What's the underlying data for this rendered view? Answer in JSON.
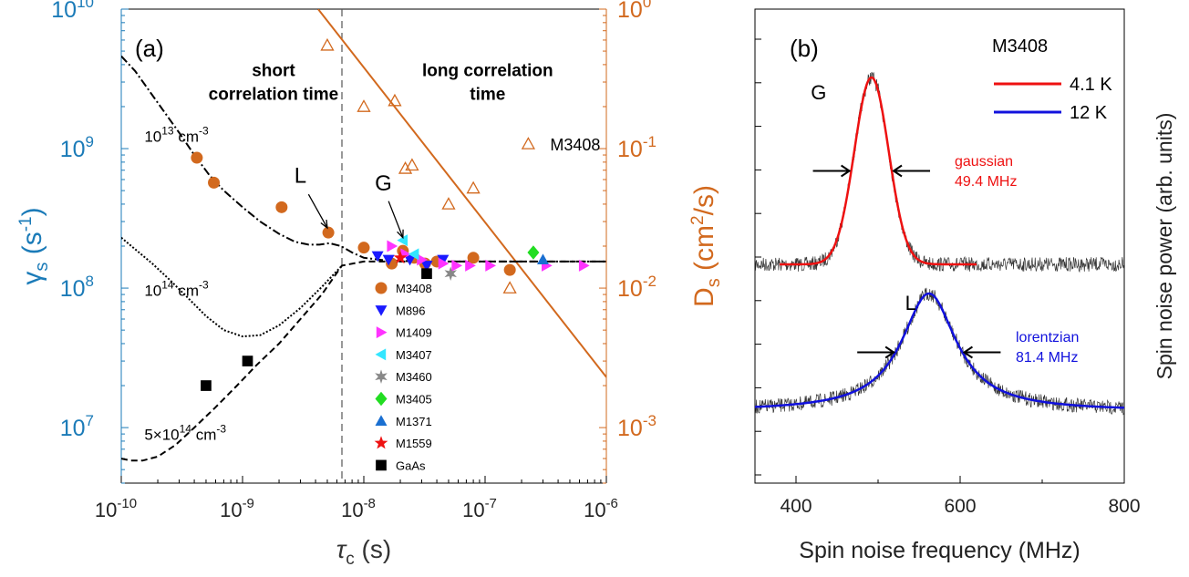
{
  "chart_data": [
    {
      "panel_label": "(a)",
      "type": "scatter",
      "x_scale": "log",
      "y_scale": "log",
      "xlabel": {
        "main": "τ",
        "sub": "c",
        "unit": " (s)"
      },
      "ylabel_left": {
        "main": "γ",
        "sub": "s",
        "unit": " (s",
        "sup": "-1",
        "close": ")"
      },
      "ylabel_right": {
        "main": "D",
        "sub": "s",
        "unit": " (cm",
        "sup": "2",
        "close": "/s)"
      },
      "xlim": [
        1e-10,
        1e-06
      ],
      "ylim_left": [
        4000000.0,
        10000000000.0
      ],
      "ylim_right": [
        0.0004,
        1
      ],
      "x_ticks": [
        {
          "v": 1e-10,
          "m": "10",
          "e": "-10"
        },
        {
          "v": 1e-09,
          "m": "10",
          "e": "-9"
        },
        {
          "v": 1e-08,
          "m": "10",
          "e": "-8"
        },
        {
          "v": 1e-07,
          "m": "10",
          "e": "-7"
        },
        {
          "v": 1e-06,
          "m": "10",
          "e": "-6"
        }
      ],
      "y_ticks_left": [
        {
          "v": 10000000.0,
          "m": "10",
          "e": "7"
        },
        {
          "v": 100000000.0,
          "m": "10",
          "e": "8"
        },
        {
          "v": 1000000000.0,
          "m": "10",
          "e": "9"
        },
        {
          "v": 10000000000.0,
          "m": "10",
          "e": "10"
        }
      ],
      "y_ticks_right": [
        {
          "v": 0.001,
          "m": "10",
          "e": "-3"
        },
        {
          "v": 0.01,
          "m": "10",
          "e": "-2"
        },
        {
          "v": 0.1,
          "m": "10",
          "e": "-1"
        },
        {
          "v": 1,
          "m": "10",
          "e": "0"
        }
      ],
      "colors": {
        "left_axis": "#1b7bb8",
        "right_axis": "#d2691e"
      },
      "region_labels": [
        {
          "lines": [
            "short",
            "correlation time"
          ],
          "x": 1.8e-09,
          "y": 3300000000.0
        },
        {
          "lines": [
            "long correlation",
            "time"
          ],
          "x": 1.05e-07,
          "y": 3300000000.0
        }
      ],
      "divider_x": 6.6e-09,
      "concentration_labels": [
        {
          "pre": "10",
          "sup": "13",
          "post": " cm",
          "sup2": "-3",
          "x": 1.55e-10,
          "y": 1120000000.0
        },
        {
          "pre": "10",
          "sup": "14",
          "post": " cm",
          "sup2": "-3",
          "x": 1.55e-10,
          "y": 88000000.0
        },
        {
          "pre": "5×10",
          "sup": "14",
          "post": " cm",
          "sup2": "-3",
          "x": 1.55e-10,
          "y": 8200000.0
        }
      ],
      "theory_curves": [
        {
          "name": "10^13 cm^-3",
          "style": "dashdot",
          "x": [
            1e-10,
            1.3e-10,
            1.7e-10,
            2.2e-10,
            3e-10,
            4e-10,
            5.3e-10,
            7e-10,
            1e-09,
            1.4e-09,
            2e-09,
            2.7e-09,
            3.5e-09,
            4.3e-09,
            5.2e-09,
            6.5e-09,
            8e-09,
            1e-08,
            1.5e-08,
            3e-08,
            1e-07,
            1e-06
          ],
          "y": [
            4600000000.0,
            3600000000.0,
            2600000000.0,
            1900000000.0,
            1300000000.0,
            900000000.0,
            650000000.0,
            500000000.0,
            380000000.0,
            300000000.0,
            245000000.0,
            215000000.0,
            205000000.0,
            205000000.0,
            210000000.0,
            200000000.0,
            180000000.0,
            165000000.0,
            158000000.0,
            155000000.0,
            155000000.0,
            155000000.0
          ]
        },
        {
          "name": "10^14 cm^-3",
          "style": "dotted",
          "x": [
            1e-10,
            1.3e-10,
            1.8e-10,
            2.5e-10,
            3.5e-10,
            5e-10,
            7e-10,
            1e-09,
            1.4e-09,
            2e-09,
            3e-09,
            4.5e-09,
            6.6e-09
          ],
          "y": [
            230000000.0,
            190000000.0,
            150000000.0,
            115000000.0,
            86000000.0,
            63000000.0,
            50000000.0,
            45000000.0,
            46000000.0,
            54000000.0,
            72000000.0,
            102000000.0,
            145000000.0
          ]
        },
        {
          "name": "5x10^14 cm^-3",
          "style": "dashed",
          "x": [
            1e-10,
            1.2e-10,
            1.5e-10,
            2e-10,
            2.8e-10,
            4e-10,
            6e-10,
            9e-10,
            1.3e-09,
            2e-09,
            3e-09,
            4.5e-09,
            6.6e-09,
            1e-08,
            1e-06
          ],
          "y": [
            6000000.0,
            5800000.0,
            5800000.0,
            6200000.0,
            7500000.0,
            10000000.0,
            14000000.0,
            20000000.0,
            28000000.0,
            40000000.0,
            60000000.0,
            90000000.0,
            145000000.0,
            155000000.0,
            155000000.0
          ]
        }
      ],
      "series": [
        {
          "name": "M3408",
          "marker": "circle",
          "color": "#d2691e",
          "x": [
            4.2e-10,
            5.8e-10,
            2.1e-09,
            5.1e-09,
            1e-08,
            1.7e-08,
            2.1e-08,
            2.6e-08,
            3.2e-08,
            4e-08,
            8e-08,
            1.6e-07
          ],
          "y": [
            860000000.0,
            570000000.0,
            380000000.0,
            250000000.0,
            195000000.0,
            150000000.0,
            185000000.0,
            165000000.0,
            150000000.0,
            155000000.0,
            165000000.0,
            135000000.0
          ]
        },
        {
          "name": "M896",
          "marker": "triangle-down",
          "color": "#1a1aff",
          "x": [
            1.3e-08,
            1.6e-08,
            2.4e-08,
            3.3e-08,
            4.5e-08
          ],
          "y": [
            170000000.0,
            160000000.0,
            160000000.0,
            145000000.0,
            160000000.0
          ]
        },
        {
          "name": "M1409",
          "marker": "triangle-right",
          "color": "#ff33ff",
          "x": [
            1.7e-08,
            2.2e-08,
            3e-08,
            4.5e-08,
            5.8e-08,
            7.5e-08,
            1.1e-07,
            3.2e-07,
            6.5e-07
          ],
          "y": [
            200000000.0,
            175000000.0,
            160000000.0,
            150000000.0,
            145000000.0,
            145000000.0,
            145000000.0,
            145000000.0,
            145000000.0
          ]
        },
        {
          "name": "M3407",
          "marker": "triangle-left",
          "color": "#33e6ff",
          "x": [
            2.1e-08,
            2.6e-08
          ],
          "y": [
            220000000.0,
            175000000.0
          ]
        },
        {
          "name": "M3460",
          "marker": "star6",
          "color": "#888888",
          "x": [
            5.2e-08
          ],
          "y": [
            127000000.0
          ]
        },
        {
          "name": "M3405",
          "marker": "diamond",
          "color": "#22dd22",
          "x": [
            2.5e-07
          ],
          "y": [
            180000000.0
          ]
        },
        {
          "name": "M1371",
          "marker": "triangle-up",
          "color": "#1a6fd1",
          "x": [
            3e-07
          ],
          "y": [
            160000000.0
          ]
        },
        {
          "name": "M1559",
          "marker": "star5",
          "color": "#ee1111",
          "x": [
            2e-08
          ],
          "y": [
            165000000.0
          ]
        },
        {
          "name": "GaAs",
          "marker": "square",
          "color": "#000000",
          "x": [
            5e-10,
            1.1e-09,
            3.3e-08
          ],
          "y": [
            20000000.0,
            30000000.0,
            127000000.0
          ]
        }
      ],
      "diffusion": {
        "name": "M3408",
        "marker": "triangle-up-open",
        "color": "#d2691e",
        "x": [
          5e-09,
          1e-08,
          1.8e-08,
          2.2e-08,
          2.5e-08,
          5e-08,
          8e-08,
          1.6e-07
        ],
        "y": [
          0.55,
          0.2,
          0.22,
          0.072,
          0.076,
          0.04,
          0.052,
          0.01
        ],
        "fit_line": {
          "x": [
            4.2e-09,
            1e-06
          ],
          "y": [
            1,
            0.0023
          ]
        },
        "legend_x": 2.7e-07,
        "legend_y": 0.108
      },
      "annotations": [
        {
          "text": "L",
          "x": 3e-09,
          "y": 570000000.0,
          "arrow_from": [
            3.5e-09,
            470000000.0
          ],
          "arrow_to": [
            5e-09,
            270000000.0
          ]
        },
        {
          "text": "G",
          "x": 1.45e-08,
          "y": 500000000.0,
          "arrow_from": [
            1.6e-08,
            420000000.0
          ],
          "arrow_to": [
            2.1e-08,
            230000000.0
          ]
        }
      ]
    },
    {
      "panel_label": "(b)",
      "type": "line",
      "title": "M3408",
      "xlabel": "Spin noise frequency (MHz)",
      "ylabel": "Spin noise power (arb. units)",
      "xlim": [
        350,
        800
      ],
      "x_ticks": [
        400,
        600,
        800
      ],
      "legend": [
        {
          "label": "4.1 K",
          "color": "#ee1111"
        },
        {
          "label": "12 K",
          "color": "#1111dd"
        }
      ],
      "series": [
        {
          "name": "4.1 K",
          "peak_label": "G",
          "shape": "gaussian",
          "center_MHz": 492,
          "fwhm_MHz": 49.4,
          "fit_range": [
            380,
            620
          ],
          "color": "#ee1111",
          "fit_text": [
            "gaussian",
            "49.4 MHz"
          ]
        },
        {
          "name": "12 K",
          "peak_label": "L",
          "shape": "lorentzian",
          "center_MHz": 562,
          "fwhm_MHz": 81.4,
          "fit_range": [
            350,
            800
          ],
          "color": "#1111dd",
          "fit_text": [
            "lorentzian",
            "81.4 MHz"
          ]
        }
      ]
    }
  ]
}
